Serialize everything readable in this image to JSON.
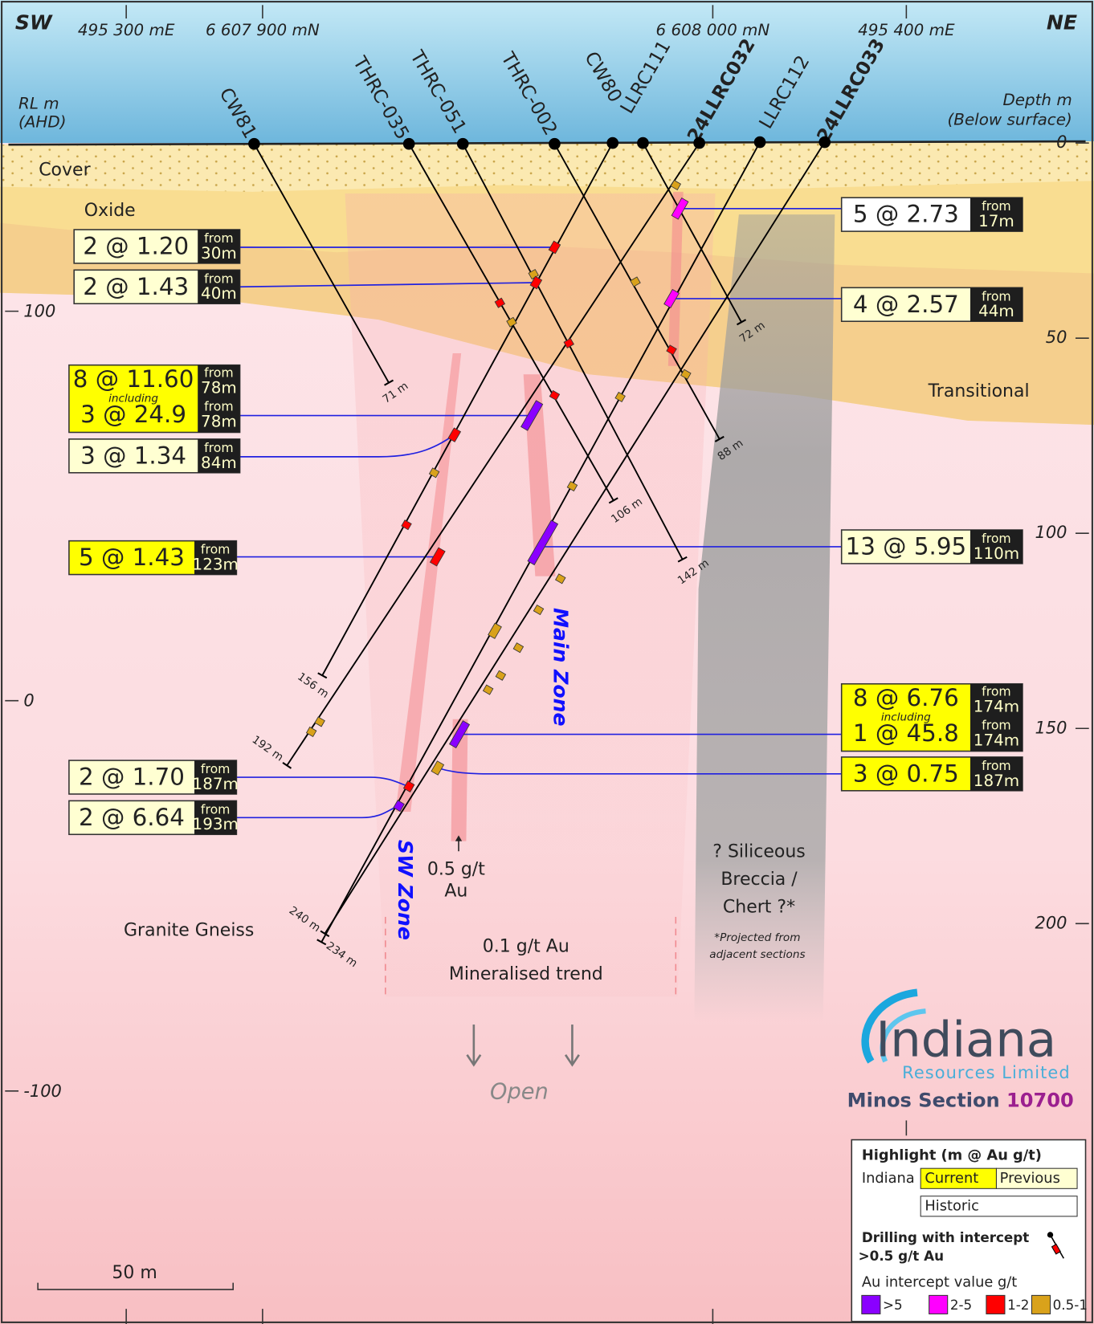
{
  "header": {
    "left_dir": "SW",
    "right_dir": "NE",
    "grid_labels": [
      "495 300 mE",
      "6 607 900 mN",
      "6 608 000 mN",
      "495 400 mE"
    ],
    "rl_title": "RL m",
    "rl_datum": "(AHD)",
    "depth_title": "Depth m",
    "depth_note": "(Below surface)"
  },
  "rl_axis": [
    "100",
    "0",
    "-100"
  ],
  "depth_axis": [
    "0",
    "50",
    "100",
    "150",
    "200"
  ],
  "holes": [
    {
      "name": "CW81",
      "end_depth": "71 m"
    },
    {
      "name": "THRC-035",
      "end_depth": "106 m"
    },
    {
      "name": "THRC-051",
      "end_depth": "142 m"
    },
    {
      "name": "THRC-002",
      "end_depth": "88 m"
    },
    {
      "name": "CW80",
      "end_depth": "156 m"
    },
    {
      "name": "LLRC111",
      "end_depth": "72 m"
    },
    {
      "name": "24LLRC032",
      "end_depth": "192 m"
    },
    {
      "name": "LLRC112",
      "end_depth": "234 m"
    },
    {
      "name": "24LLRC033",
      "end_depth": "240 m"
    }
  ],
  "intercepts": {
    "left": [
      {
        "value": "2 @ 1.20",
        "from": "from",
        "depth": "30m",
        "color": "#ffffd2"
      },
      {
        "value": "2 @ 1.43",
        "from": "from",
        "depth": "40m",
        "color": "#ffffd2"
      },
      {
        "value": "8 @ 11.60",
        "from": "from",
        "depth": "78m",
        "including": "including",
        "value2": "3 @ 24.9",
        "from2": "from",
        "depth2": "78m",
        "color": "#ffff00"
      },
      {
        "value": "3 @ 1.34",
        "from": "from",
        "depth": "84m",
        "color": "#ffffd2"
      },
      {
        "value": "5 @ 1.43",
        "from": "from",
        "depth": "123m",
        "color": "#ffff00"
      },
      {
        "value": "2 @ 1.70",
        "from": "from",
        "depth": "187m",
        "color": "#ffffd2"
      },
      {
        "value": "2 @ 6.64",
        "from": "from",
        "depth": "193m",
        "color": "#ffffd2"
      }
    ],
    "right": [
      {
        "value": "5 @ 2.73",
        "from": "from",
        "depth": "17m",
        "color": "#ffffff"
      },
      {
        "value": "4 @ 2.57",
        "from": "from",
        "depth": "44m",
        "color": "#ffffd2"
      },
      {
        "value": "13 @ 5.95",
        "from": "from",
        "depth": "110m",
        "color": "#ffffd2"
      },
      {
        "value": "8 @ 6.76",
        "from": "from",
        "depth": "174m",
        "including": "including",
        "value2": "1 @ 45.8",
        "from2": "from",
        "depth2": "174m",
        "color": "#ffff00"
      },
      {
        "value": "3 @ 0.75",
        "from": "from",
        "depth": "187m",
        "color": "#ffff00"
      }
    ]
  },
  "labels": {
    "cover": "Cover",
    "oxide": "Oxide",
    "transitional": "Transitional",
    "granite": "Granite Gneiss",
    "main_zone": "Main Zone",
    "sw_zone": "SW Zone",
    "grade_05": [
      "0.5 g/t",
      "Au"
    ],
    "trend": [
      "0.1 g/t Au",
      "Mineralised trend"
    ],
    "open": "Open",
    "breccia": [
      "? Siliceous",
      "Breccia /",
      "Chert ?*"
    ],
    "projected": [
      "*Projected from",
      "adjacent sections"
    ]
  },
  "logo": {
    "name": "Indiana",
    "subtitle": "Resources Limited",
    "section_label": "Minos Section",
    "section_number": "10700"
  },
  "legend": {
    "title": "Highlight (m @ Au g/t)",
    "company": "Indiana",
    "current": "Current",
    "previous": "Previous",
    "historic": "Historic",
    "drilling": [
      "Drilling with intercept",
      ">0.5 g/t Au"
    ],
    "value_title": "Au intercept value g/t",
    "classes": [
      {
        "label": ">5",
        "color": "#8a00ff"
      },
      {
        "label": "2-5",
        "color": "#ff00ff"
      },
      {
        "label": "1-2",
        "color": "#ff0000"
      },
      {
        "label": "0.5-1",
        "color": "#d9a21b"
      }
    ]
  },
  "scale_bar": "50 m"
}
